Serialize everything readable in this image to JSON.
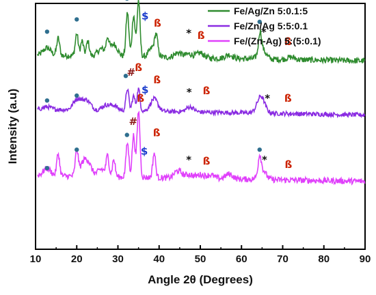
{
  "chart_data": {
    "type": "line",
    "title": "",
    "xlabel": "Angle 2θ (Degrees)",
    "ylabel": "Intensity (a.u)",
    "xlim": [
      10,
      90
    ],
    "xticks": [
      "10",
      "20",
      "30",
      "40",
      "50",
      "60",
      "70",
      "80",
      "90"
    ],
    "y_ticks_shown": false,
    "grid": false,
    "legend_position": "top-right",
    "series": [
      {
        "name": "Fe/Ag/Zn 5:0.1:5",
        "color": "#2e8b2e",
        "baseline": 0.79,
        "noise": 0.012,
        "peaks": [
          [
            12.8,
            0.03
          ],
          [
            15.5,
            0.07
          ],
          [
            20,
            0.09
          ],
          [
            21.3,
            0.06
          ],
          [
            22.7,
            0.06
          ],
          [
            26,
            0.03
          ],
          [
            27.5,
            0.06
          ],
          [
            29,
            0.05
          ],
          [
            32.3,
            0.18
          ],
          [
            33.8,
            0.17
          ],
          [
            35,
            0.23
          ],
          [
            38.5,
            0.04
          ],
          [
            39.3,
            0.07
          ],
          [
            44.6,
            0.02
          ],
          [
            47.3,
            0.015
          ],
          [
            50,
            0.02
          ],
          [
            57,
            0.015
          ],
          [
            64.5,
            0.08
          ],
          [
            65,
            0.04
          ],
          [
            72,
            0.01
          ]
        ]
      },
      {
        "name": "Fe/Zn/Ag 5:5:0.1",
        "color": "#8a2be2",
        "baseline": 0.57,
        "noise": 0.009,
        "peaks": [
          [
            12.8,
            0.01
          ],
          [
            20,
            0.04
          ],
          [
            21.5,
            0.02
          ],
          [
            22.7,
            0.03
          ],
          [
            27,
            0.02
          ],
          [
            29,
            0.02
          ],
          [
            32.3,
            0.09
          ],
          [
            33.8,
            0.06
          ],
          [
            35,
            0.09
          ],
          [
            38.8,
            0.05
          ],
          [
            47.5,
            0.02
          ],
          [
            64.6,
            0.05
          ],
          [
            65,
            0.02
          ]
        ]
      },
      {
        "name": "Fe/(Zn-Ag) 5:(5:0.1)",
        "color": "#e040fb",
        "baseline": 0.3,
        "noise": 0.012,
        "peaks": [
          [
            12.8,
            0.03
          ],
          [
            15.5,
            0.09
          ],
          [
            20,
            0.1
          ],
          [
            21.5,
            0.04
          ],
          [
            22.7,
            0.05
          ],
          [
            26,
            0.03
          ],
          [
            27.5,
            0.08
          ],
          [
            29,
            0.07
          ],
          [
            32.3,
            0.14
          ],
          [
            33.8,
            0.17
          ],
          [
            35,
            0.27
          ],
          [
            38.8,
            0.1
          ],
          [
            44.6,
            0.03
          ],
          [
            47.3,
            0.015
          ],
          [
            50,
            0.015
          ],
          [
            52.5,
            0.015
          ],
          [
            57,
            0.02
          ],
          [
            64.4,
            0.07
          ],
          [
            65,
            0.04
          ]
        ]
      }
    ],
    "annotations": [
      {
        "text": "•",
        "kind": "dot",
        "x": 12.8,
        "y": 0.885,
        "color": "#2f6f8f"
      },
      {
        "text": "•",
        "kind": "dot",
        "x": 20.0,
        "y": 0.935,
        "color": "#2f6f8f"
      },
      {
        "text": "•",
        "kind": "dot",
        "x": 32.2,
        "y": 1.02,
        "color": "#2f6f8f"
      },
      {
        "text": "#",
        "kind": "label",
        "x": 33.7,
        "y": 1.025,
        "color": "#8b1a1a"
      },
      {
        "text": "ß",
        "kind": "label",
        "x": 35.5,
        "y": 1.035,
        "color": "#cc2200"
      },
      {
        "text": "$",
        "kind": "label",
        "x": 36.6,
        "y": 0.935,
        "color": "#1a3ccc"
      },
      {
        "text": "ß",
        "kind": "label",
        "x": 39.6,
        "y": 0.905,
        "color": "#cc2200"
      },
      {
        "text": "*",
        "kind": "label",
        "x": 47.2,
        "y": 0.865,
        "color": "#111111"
      },
      {
        "text": "ß",
        "kind": "label",
        "x": 50.2,
        "y": 0.855,
        "color": "#cc2200"
      },
      {
        "text": "•",
        "kind": "dot",
        "x": 64.4,
        "y": 0.925,
        "color": "#2f6f8f"
      },
      {
        "text": "*",
        "kind": "label",
        "x": 65.4,
        "y": 0.87,
        "color": "#111111"
      },
      {
        "text": "ß",
        "kind": "label",
        "x": 71.3,
        "y": 0.83,
        "color": "#cc2200"
      },
      {
        "text": "•",
        "kind": "dot",
        "x": 12.8,
        "y": 0.605,
        "color": "#2f6f8f"
      },
      {
        "text": "•",
        "kind": "dot",
        "x": 20.0,
        "y": 0.625,
        "color": "#2f6f8f"
      },
      {
        "text": "•",
        "kind": "dot",
        "x": 31.9,
        "y": 0.705,
        "color": "#2f6f8f"
      },
      {
        "text": "#",
        "kind": "label",
        "x": 33.2,
        "y": 0.705,
        "color": "#8b1a1a"
      },
      {
        "text": "ß",
        "kind": "label",
        "x": 35.0,
        "y": 0.725,
        "color": "#cc2200"
      },
      {
        "text": "$",
        "kind": "label",
        "x": 36.6,
        "y": 0.635,
        "color": "#1a3ccc"
      },
      {
        "text": "ß",
        "kind": "label",
        "x": 39.5,
        "y": 0.675,
        "color": "#cc2200"
      },
      {
        "text": "*",
        "kind": "label",
        "x": 47.3,
        "y": 0.625,
        "color": "#111111"
      },
      {
        "text": "ß",
        "kind": "label",
        "x": 51.5,
        "y": 0.63,
        "color": "#cc2200"
      },
      {
        "text": "*",
        "kind": "label",
        "x": 66.3,
        "y": 0.6,
        "color": "#111111"
      },
      {
        "text": "ß",
        "kind": "label",
        "x": 71.3,
        "y": 0.6,
        "color": "#cc2200"
      },
      {
        "text": "•",
        "kind": "dot",
        "x": 12.8,
        "y": 0.33,
        "color": "#2f6f8f"
      },
      {
        "text": "•",
        "kind": "dot",
        "x": 20.0,
        "y": 0.405,
        "color": "#2f6f8f"
      },
      {
        "text": "•",
        "kind": "dot",
        "x": 32.2,
        "y": 0.465,
        "color": "#2f6f8f"
      },
      {
        "text": "#",
        "kind": "label",
        "x": 33.7,
        "y": 0.505,
        "color": "#8b1a1a"
      },
      {
        "text": "ß",
        "kind": "label",
        "x": 35.5,
        "y": 0.6,
        "color": "#cc2200"
      },
      {
        "text": "$",
        "kind": "label",
        "x": 36.4,
        "y": 0.385,
        "color": "#1a3ccc"
      },
      {
        "text": "ß",
        "kind": "label",
        "x": 39.4,
        "y": 0.46,
        "color": "#cc2200"
      },
      {
        "text": "*",
        "kind": "label",
        "x": 47.2,
        "y": 0.35,
        "color": "#111111"
      },
      {
        "text": "ß",
        "kind": "label",
        "x": 51.5,
        "y": 0.345,
        "color": "#cc2200"
      },
      {
        "text": "•",
        "kind": "dot",
        "x": 64.4,
        "y": 0.405,
        "color": "#2f6f8f"
      },
      {
        "text": "*",
        "kind": "label",
        "x": 65.6,
        "y": 0.35,
        "color": "#111111"
      },
      {
        "text": "ß",
        "kind": "label",
        "x": 71.4,
        "y": 0.33,
        "color": "#cc2200"
      }
    ]
  }
}
